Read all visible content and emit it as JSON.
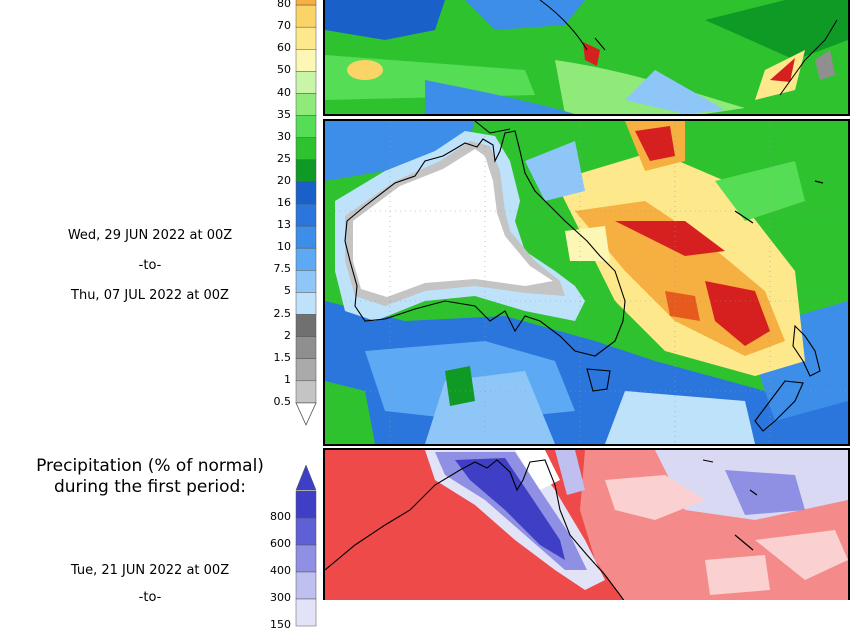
{
  "colorbar_top": {
    "labels": [
      "80",
      "70",
      "60",
      "50",
      "40",
      "35",
      "30",
      "25",
      "20",
      "16",
      "13",
      "10",
      "7.5",
      "5",
      "2.5",
      "2",
      "1.5",
      "1",
      "0.5"
    ],
    "colors": [
      "#f5b041",
      "#fbd468",
      "#fde98c",
      "#fdf7b5",
      "#c9f5a8",
      "#8fea7a",
      "#55dd55",
      "#2fc22f",
      "#0f9a26",
      "#1a60c9",
      "#2a76dd",
      "#3c8ee9",
      "#5ea9f3",
      "#8fc6f8",
      "#bfe2fb",
      "#707070",
      "#8f8f8f",
      "#aaaaaa",
      "#c4c4c4"
    ]
  },
  "period1": {
    "start": "Wed, 29 JUN 2022 at 00Z",
    "sep": "-to-",
    "end": "Thu, 07 JUL 2022 at 00Z"
  },
  "section2": {
    "heading_line1": "Precipitation (% of normal)",
    "heading_line2": "during the first period:"
  },
  "colorbar_bottom": {
    "labels": [
      "800",
      "600",
      "400",
      "300",
      "150"
    ],
    "colors": [
      "#3f3fc6",
      "#5f5fd6",
      "#8f8fe3",
      "#bfbff0",
      "#e3e3f8"
    ]
  },
  "period2": {
    "start": "Tue, 21 JUN 2022 at 00Z",
    "sep": "-to-"
  }
}
